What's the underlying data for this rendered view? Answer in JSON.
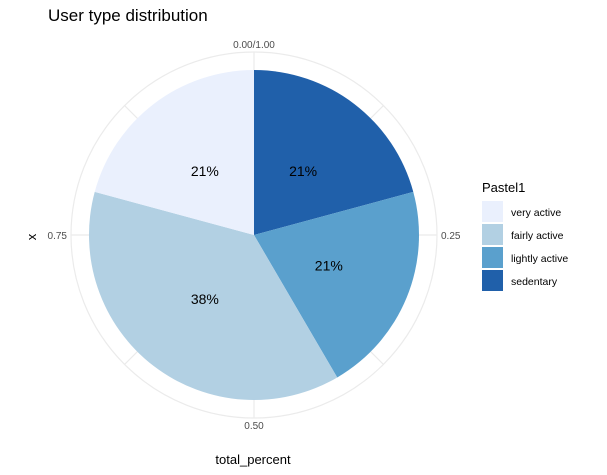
{
  "chart_data": {
    "type": "pie",
    "title": "User type distribution",
    "xlabel": "total_percent",
    "ylabel": "x",
    "angle_ticks": [
      "0.00/1.00",
      "0.25",
      "0.50",
      "0.75"
    ],
    "legend": {
      "title": "Pastel1",
      "position": "right"
    },
    "slices": [
      {
        "name": "sedentary",
        "value": 0.21,
        "label": "21%",
        "color": "#2060aa"
      },
      {
        "name": "lightly active",
        "value": 0.21,
        "label": "21%",
        "color": "#5aa0cd"
      },
      {
        "name": "fairly active",
        "value": 0.38,
        "label": "38%",
        "color": "#b2d0e3"
      },
      {
        "name": "very active",
        "value": 0.21,
        "label": "21%",
        "color": "#eaf0fd"
      }
    ],
    "legend_order": [
      "very active",
      "fairly active",
      "lightly active",
      "sedentary"
    ],
    "grid": true
  }
}
